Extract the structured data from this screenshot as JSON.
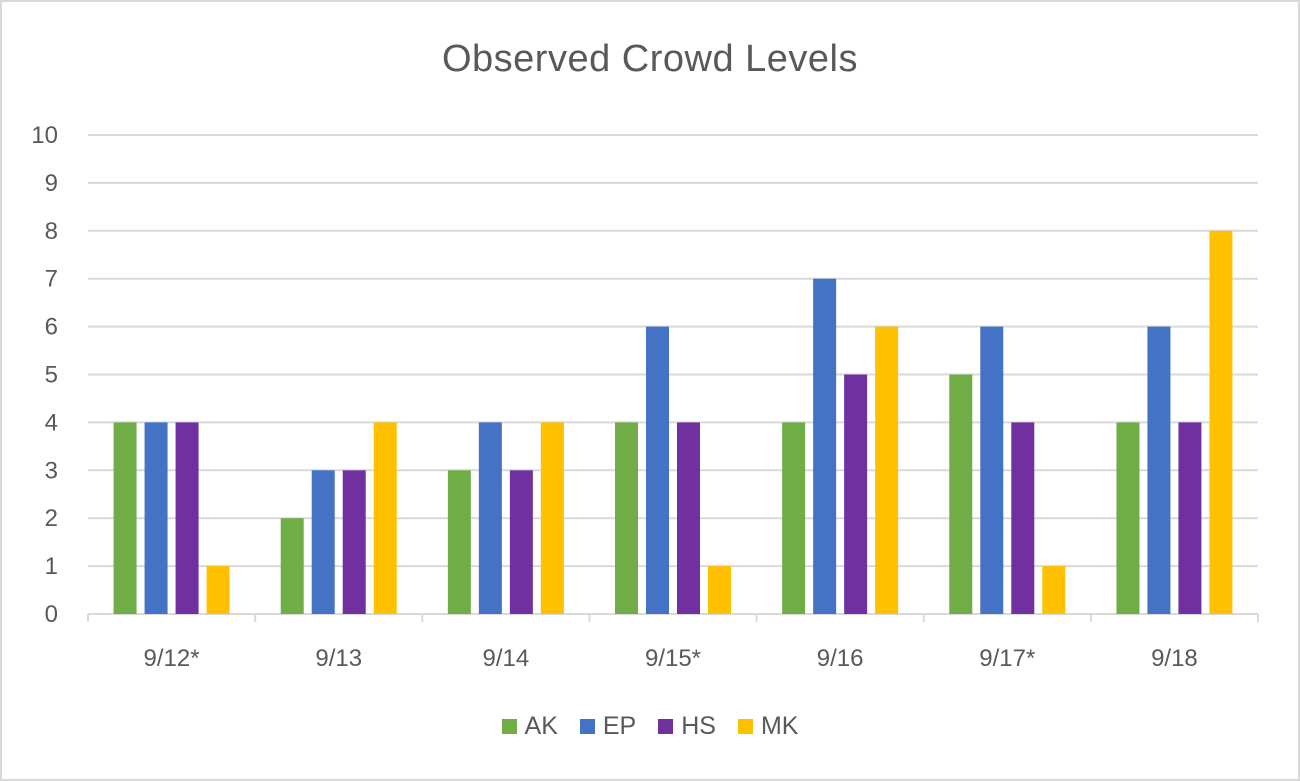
{
  "chart_data": {
    "type": "bar",
    "title": "Observed Crowd Levels",
    "xlabel": "",
    "ylabel": "",
    "categories": [
      "9/12*",
      "9/13",
      "9/14",
      "9/15*",
      "9/16",
      "9/17*",
      "9/18"
    ],
    "ylim": [
      0,
      10
    ],
    "yticks": [
      0,
      1,
      2,
      3,
      4,
      5,
      6,
      7,
      8,
      9,
      10
    ],
    "grid": "horizontal",
    "legend_position": "bottom",
    "series": [
      {
        "name": "AK",
        "color": "#70ad47",
        "values": [
          4,
          2,
          3,
          4,
          4,
          5,
          4
        ]
      },
      {
        "name": "EP",
        "color": "#4472c4",
        "values": [
          4,
          3,
          4,
          6,
          7,
          6,
          6
        ]
      },
      {
        "name": "HS",
        "color": "#7030a0",
        "values": [
          4,
          3,
          3,
          4,
          5,
          4,
          4
        ]
      },
      {
        "name": "MK",
        "color": "#ffc000",
        "values": [
          1,
          4,
          4,
          1,
          6,
          1,
          8
        ]
      }
    ]
  }
}
